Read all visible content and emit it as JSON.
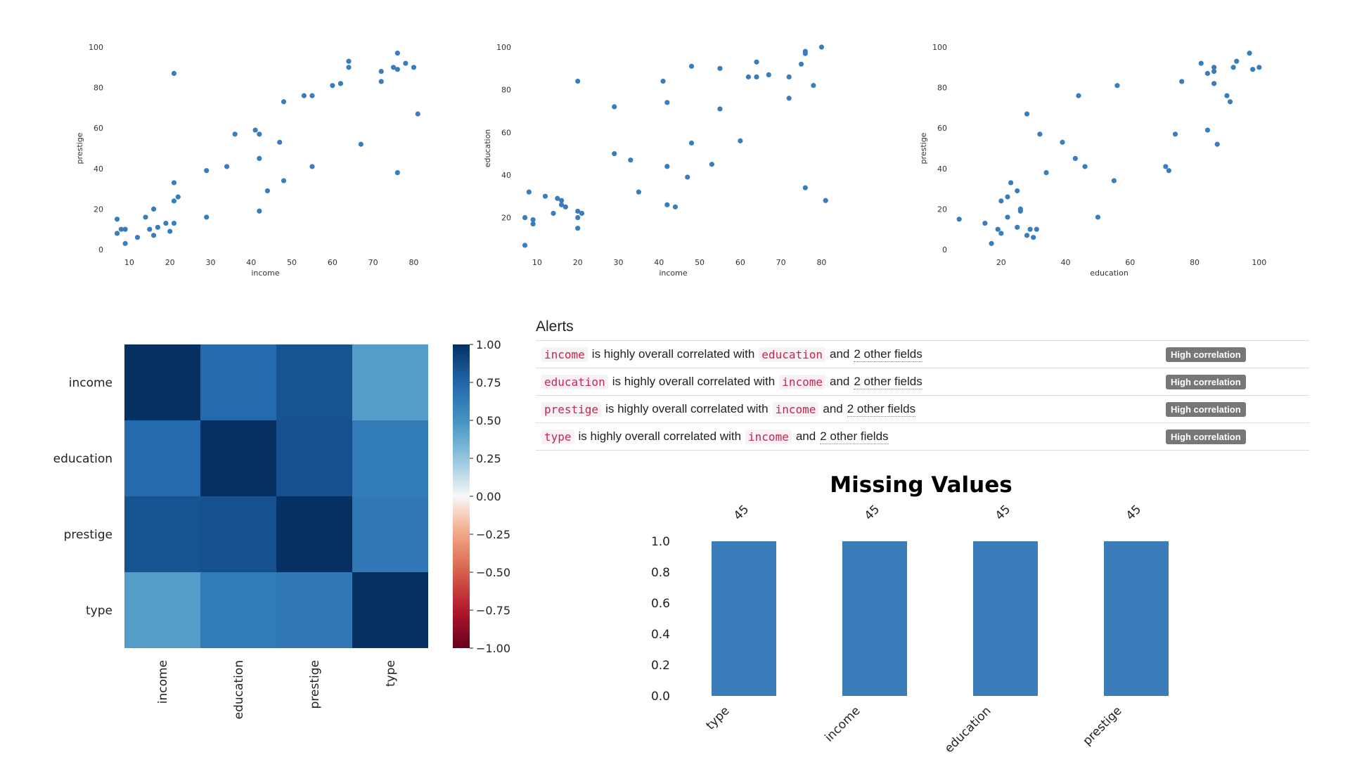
{
  "alerts": {
    "title": "Alerts",
    "items": [
      {
        "field": "income",
        "text": "is highly overall correlated with",
        "other": "education",
        "and_text": "and",
        "more": "2 other fields",
        "badge": "High correlation"
      },
      {
        "field": "education",
        "text": "is highly overall correlated with",
        "other": "income",
        "and_text": "and",
        "more": "2 other fields",
        "badge": "High correlation"
      },
      {
        "field": "prestige",
        "text": "is highly overall correlated with",
        "other": "income",
        "and_text": "and",
        "more": "2 other fields",
        "badge": "High correlation"
      },
      {
        "field": "type",
        "text": "is highly overall correlated with",
        "other": "income",
        "and_text": "and",
        "more": "2 other fields",
        "badge": "High correlation"
      }
    ]
  },
  "colors": {
    "point": "#3a7dba",
    "bar": "#3a7dba",
    "badge": "#777777",
    "code": "#c7254e"
  },
  "chart_data": [
    {
      "type": "scatter",
      "xlabel": "income",
      "ylabel": "prestige",
      "xticks": [
        10,
        20,
        30,
        40,
        50,
        60,
        70,
        80
      ],
      "yticks": [
        0,
        20,
        40,
        60,
        80,
        100
      ],
      "xlim": [
        5,
        82
      ],
      "ylim": [
        0,
        100
      ],
      "grid": false,
      "points": [
        [
          7,
          15
        ],
        [
          7,
          8
        ],
        [
          8,
          10
        ],
        [
          9,
          10
        ],
        [
          9,
          3
        ],
        [
          12,
          6
        ],
        [
          14,
          16
        ],
        [
          15,
          10
        ],
        [
          16,
          7
        ],
        [
          16,
          20
        ],
        [
          17,
          11
        ],
        [
          19,
          13
        ],
        [
          20,
          9
        ],
        [
          21,
          33
        ],
        [
          21,
          24
        ],
        [
          21,
          13
        ],
        [
          22,
          26
        ],
        [
          21,
          87
        ],
        [
          29,
          39
        ],
        [
          29,
          16
        ],
        [
          34,
          41
        ],
        [
          36,
          57
        ],
        [
          41,
          59
        ],
        [
          42,
          57
        ],
        [
          42,
          45
        ],
        [
          42,
          19
        ],
        [
          44,
          29
        ],
        [
          47,
          53
        ],
        [
          48,
          73
        ],
        [
          48,
          34
        ],
        [
          53,
          76
        ],
        [
          55,
          76
        ],
        [
          55,
          41
        ],
        [
          60,
          81
        ],
        [
          62,
          82
        ],
        [
          64,
          93
        ],
        [
          64,
          90
        ],
        [
          67,
          52
        ],
        [
          72,
          88
        ],
        [
          72,
          83
        ],
        [
          75,
          90
        ],
        [
          76,
          97
        ],
        [
          76,
          89
        ],
        [
          76,
          38
        ],
        [
          78,
          92
        ],
        [
          80,
          90
        ],
        [
          81,
          67
        ]
      ]
    },
    {
      "type": "scatter",
      "xlabel": "income",
      "ylabel": "education",
      "xticks": [
        10,
        20,
        30,
        40,
        50,
        60,
        70,
        80
      ],
      "yticks": [
        20,
        40,
        60,
        80,
        100
      ],
      "xlim": [
        5,
        82
      ],
      "ylim": [
        5,
        100
      ],
      "grid": false,
      "points": [
        [
          7,
          20
        ],
        [
          7,
          7
        ],
        [
          8,
          32
        ],
        [
          9,
          19
        ],
        [
          9,
          17
        ],
        [
          12,
          30
        ],
        [
          14,
          22
        ],
        [
          15,
          29
        ],
        [
          16,
          28
        ],
        [
          16,
          26
        ],
        [
          17,
          25
        ],
        [
          20,
          84
        ],
        [
          20,
          23
        ],
        [
          20,
          20
        ],
        [
          20,
          15
        ],
        [
          21,
          22
        ],
        [
          29,
          72
        ],
        [
          29,
          50
        ],
        [
          33,
          47
        ],
        [
          35,
          32
        ],
        [
          41,
          84
        ],
        [
          42,
          74
        ],
        [
          42,
          44
        ],
        [
          42,
          26
        ],
        [
          44,
          25
        ],
        [
          47,
          39
        ],
        [
          48,
          91
        ],
        [
          48,
          55
        ],
        [
          53,
          45
        ],
        [
          55,
          90
        ],
        [
          55,
          71
        ],
        [
          60,
          56
        ],
        [
          62,
          86
        ],
        [
          64,
          93
        ],
        [
          64,
          86
        ],
        [
          67,
          87
        ],
        [
          72,
          86
        ],
        [
          72,
          76
        ],
        [
          75,
          92
        ],
        [
          76,
          98
        ],
        [
          76,
          97
        ],
        [
          76,
          34
        ],
        [
          78,
          82
        ],
        [
          80,
          100
        ],
        [
          81,
          28
        ]
      ]
    },
    {
      "type": "scatter",
      "xlabel": "education",
      "ylabel": "prestige",
      "xticks": [
        20,
        40,
        60,
        80,
        100
      ],
      "yticks": [
        0,
        20,
        40,
        60,
        80,
        100
      ],
      "xlim": [
        5,
        102
      ],
      "ylim": [
        0,
        100
      ],
      "grid": false,
      "points": [
        [
          7,
          15
        ],
        [
          15,
          13
        ],
        [
          17,
          3
        ],
        [
          19,
          10
        ],
        [
          20,
          24
        ],
        [
          20,
          8
        ],
        [
          22,
          26
        ],
        [
          22,
          16
        ],
        [
          23,
          33
        ],
        [
          25,
          29
        ],
        [
          25,
          11
        ],
        [
          26,
          20
        ],
        [
          26,
          19
        ],
        [
          28,
          67
        ],
        [
          28,
          7
        ],
        [
          29,
          10
        ],
        [
          30,
          6
        ],
        [
          31,
          10
        ],
        [
          32,
          57
        ],
        [
          34,
          38
        ],
        [
          39,
          53
        ],
        [
          43,
          45
        ],
        [
          44,
          76
        ],
        [
          46,
          41
        ],
        [
          50,
          16
        ],
        [
          55,
          34
        ],
        [
          56,
          81
        ],
        [
          71,
          41
        ],
        [
          72,
          39
        ],
        [
          74,
          57
        ],
        [
          76,
          83
        ],
        [
          82,
          92
        ],
        [
          84,
          59
        ],
        [
          84,
          87
        ],
        [
          86,
          90
        ],
        [
          86,
          88
        ],
        [
          86,
          82
        ],
        [
          87,
          52
        ],
        [
          90,
          76
        ],
        [
          91,
          73
        ],
        [
          92,
          90
        ],
        [
          93,
          93
        ],
        [
          97,
          97
        ],
        [
          98,
          89
        ],
        [
          100,
          90
        ]
      ]
    },
    {
      "type": "heatmap",
      "rows": [
        "income",
        "education",
        "prestige",
        "type"
      ],
      "cols": [
        "income",
        "education",
        "prestige",
        "type"
      ],
      "values": [
        [
          1.0,
          0.73,
          0.84,
          0.45
        ],
        [
          0.73,
          1.0,
          0.85,
          0.63
        ],
        [
          0.84,
          0.85,
          1.0,
          0.65
        ],
        [
          0.45,
          0.63,
          0.65,
          1.0
        ]
      ],
      "colorbar_ticks": [
        "1.00",
        "0.75",
        "0.50",
        "0.25",
        "0.00",
        "−0.25",
        "−0.50",
        "−0.75",
        "−1.00"
      ],
      "vmin": -1,
      "vmax": 1,
      "colormap": "RdBu"
    },
    {
      "type": "bar",
      "title": "Missing Values",
      "categories": [
        "type",
        "income",
        "education",
        "prestige"
      ],
      "values": [
        1.0,
        1.0,
        1.0,
        1.0
      ],
      "counts": [
        "45",
        "45",
        "45",
        "45"
      ],
      "yticks": [
        "0.0",
        "0.2",
        "0.4",
        "0.6",
        "0.8",
        "1.0"
      ],
      "ylim": [
        0,
        1
      ]
    }
  ]
}
